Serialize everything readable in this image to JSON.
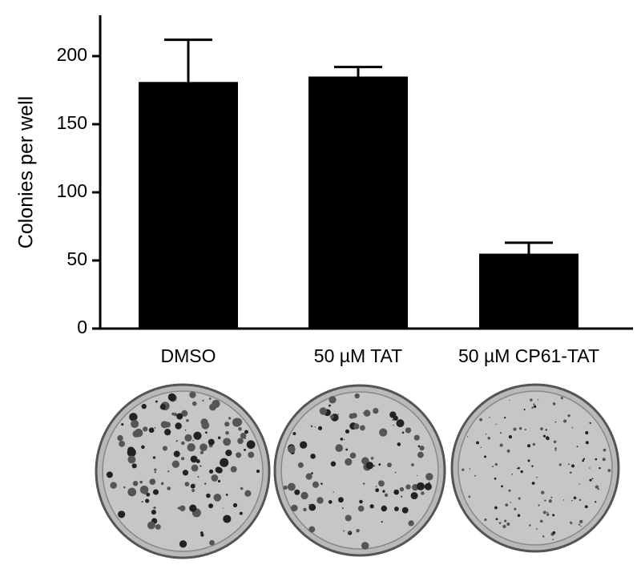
{
  "chart_data": {
    "type": "bar",
    "y_label": "Colonies per well",
    "categories": [
      "DMSO",
      "50 µM TAT",
      "50 µM CP61-TAT"
    ],
    "values": [
      181,
      185,
      55
    ],
    "errors": [
      31,
      7,
      8
    ],
    "color": "#000000",
    "ylim": [
      0,
      230
    ],
    "yticks": [
      0,
      50,
      100,
      150,
      200
    ],
    "grid": false
  }
}
